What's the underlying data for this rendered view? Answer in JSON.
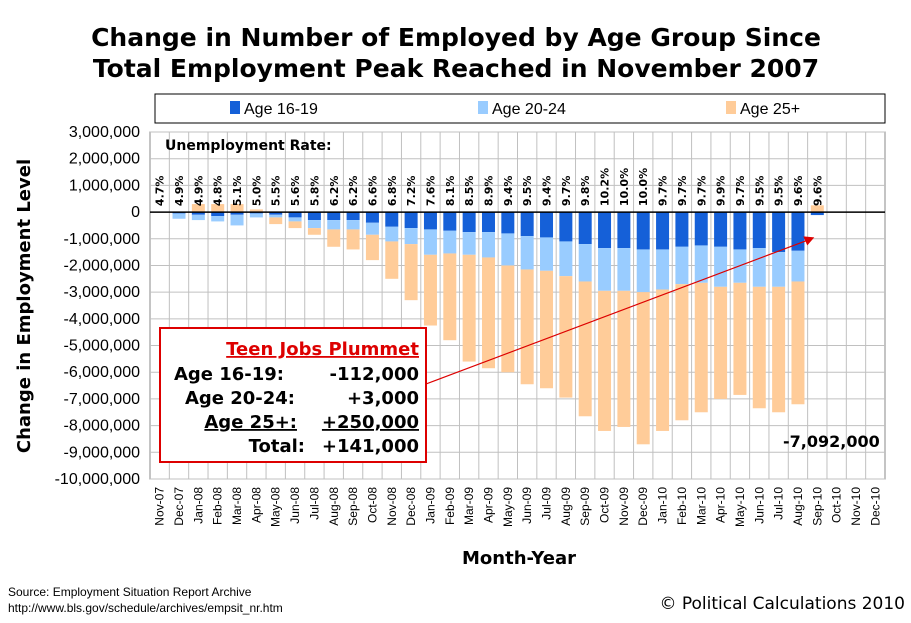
{
  "chart_data": {
    "type": "bar",
    "title_line1": "Change in Number of Employed by Age Group Since",
    "title_line2": "Total Employment Peak Reached in November 2007",
    "xlabel": "Month-Year",
    "ylabel": "Change in Employment Level",
    "ylim": [
      -10000000,
      3000000
    ],
    "yticks": [
      "3,000,000",
      "2,000,000",
      "1,000,000",
      "0",
      "-1,000,000",
      "-2,000,000",
      "-3,000,000",
      "-4,000,000",
      "-5,000,000",
      "-6,000,000",
      "-7,000,000",
      "-8,000,000",
      "-9,000,000",
      "-10,000,000"
    ],
    "grid": true,
    "legend_position": "top",
    "categories": [
      "Nov-07",
      "Dec-07",
      "Jan-08",
      "Feb-08",
      "Mar-08",
      "Apr-08",
      "May-08",
      "Jun-08",
      "Jul-08",
      "Aug-08",
      "Sep-08",
      "Oct-08",
      "Nov-08",
      "Dec-08",
      "Jan-09",
      "Feb-09",
      "Mar-09",
      "Apr-09",
      "May-09",
      "Jun-09",
      "Jul-09",
      "Aug-09",
      "Sep-09",
      "Oct-09",
      "Nov-09",
      "Dec-09",
      "Jan-10",
      "Feb-10",
      "Mar-10",
      "Apr-10",
      "May-10",
      "Jun-10",
      "Jul-10",
      "Aug-10",
      "Sep-10",
      "Oct-10",
      "Nov-10",
      "Dec-10"
    ],
    "series": [
      {
        "name": "Age 16-19",
        "color": "#1560d8",
        "values": [
          0,
          -50000,
          -100000,
          -150000,
          -100000,
          -50000,
          -100000,
          -200000,
          -300000,
          -300000,
          -300000,
          -400000,
          -550000,
          -600000,
          -650000,
          -700000,
          -750000,
          -750000,
          -800000,
          -900000,
          -950000,
          -1100000,
          -1200000,
          -1350000,
          -1350000,
          -1400000,
          -1400000,
          -1300000,
          -1250000,
          -1300000,
          -1400000,
          -1350000,
          -1500000,
          -1450000,
          -112000,
          null,
          null,
          null
        ]
      },
      {
        "name": "Age 20-24",
        "color": "#99ccff",
        "values": [
          0,
          -200000,
          -200000,
          -200000,
          -400000,
          -150000,
          -100000,
          -150000,
          -300000,
          -350000,
          -350000,
          -450000,
          -550000,
          -600000,
          -950000,
          -850000,
          -850000,
          -950000,
          -1200000,
          -1250000,
          -1250000,
          -1300000,
          -1400000,
          -1600000,
          -1600000,
          -1600000,
          -1500000,
          -1400000,
          -1400000,
          -1500000,
          -1250000,
          -1450000,
          -1300000,
          -1150000,
          3000,
          null,
          null,
          null
        ]
      },
      {
        "name": "Age 25+",
        "color": "#ffcc99",
        "values": [
          0,
          0,
          300000,
          300000,
          300000,
          100000,
          -250000,
          -250000,
          -250000,
          -650000,
          -750000,
          -950000,
          -1400000,
          -2100000,
          -2650000,
          -3250000,
          -4000000,
          -4150000,
          -4000000,
          -4300000,
          -4400000,
          -4550000,
          -5050000,
          -5250000,
          -5100000,
          -5700000,
          -5300000,
          -5100000,
          -4850000,
          -4200000,
          -4200000,
          -4550000,
          -4700000,
          -4600000,
          250000,
          null,
          null,
          null
        ]
      }
    ],
    "unemployment_rate_label": "Unemployment Rate:",
    "unemployment_rates": [
      "4.7%",
      "4.9%",
      "4.9%",
      "4.8%",
      "5.1%",
      "5.0%",
      "5.5%",
      "5.6%",
      "5.8%",
      "6.2%",
      "6.2%",
      "6.6%",
      "6.8%",
      "7.2%",
      "7.6%",
      "8.1%",
      "8.5%",
      "8.9%",
      "9.4%",
      "9.5%",
      "9.4%",
      "9.7%",
      "9.8%",
      "10.2%",
      "10.0%",
      "10.0%",
      "9.7%",
      "9.7%",
      "9.7%",
      "9.9%",
      "9.7%",
      "9.5%",
      "9.5%",
      "9.6%",
      "9.6%"
    ],
    "last_total_label": "-7,092,000",
    "annotation": {
      "headline": "Teen Jobs Plummet",
      "rows": [
        {
          "label": "Age 16-19:",
          "value": "-112,000"
        },
        {
          "label": "Age 20-24:",
          "value": "+3,000"
        },
        {
          "label": "Age 25+:",
          "value": "+250,000"
        },
        {
          "label": "Total:",
          "value": "+141,000"
        }
      ],
      "accent_color": "#dd0000"
    }
  },
  "footer": {
    "source_line1": "Source: Employment Situation Report Archive",
    "source_line2": "http://www.bls.gov/schedule/archives/empsit_nr.htm",
    "copyright": "© Political Calculations 2010"
  }
}
